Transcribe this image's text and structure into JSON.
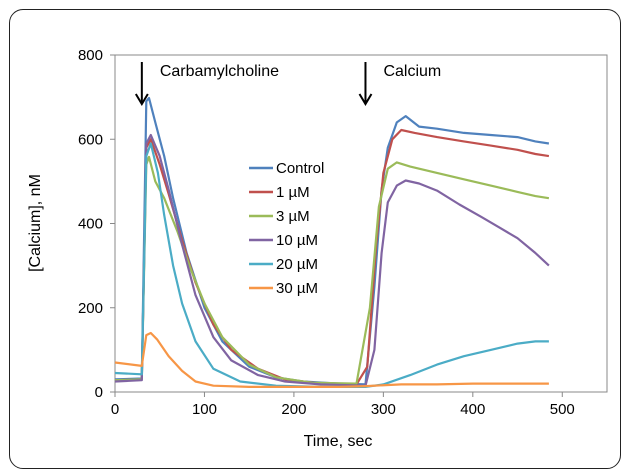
{
  "chart_data": {
    "type": "line",
    "title": "",
    "xlabel": "Time, sec",
    "ylabel": "[Calcium], nM",
    "xlim": [
      0,
      550
    ],
    "ylim": [
      0,
      800
    ],
    "xticks": [
      0,
      100,
      200,
      300,
      400,
      500
    ],
    "yticks": [
      0,
      200,
      400,
      600,
      800
    ],
    "grid": false,
    "legend_position": "center",
    "annotations": [
      {
        "label": "Carbamylcholine",
        "x": 30
      },
      {
        "label": "Calcium",
        "x": 280
      }
    ],
    "series": [
      {
        "name": "Control",
        "color": "#4F81BD",
        "points": [
          [
            0,
            30
          ],
          [
            30,
            32
          ],
          [
            35,
            690
          ],
          [
            38,
            698
          ],
          [
            45,
            640
          ],
          [
            55,
            560
          ],
          [
            65,
            460
          ],
          [
            80,
            330
          ],
          [
            100,
            200
          ],
          [
            120,
            120
          ],
          [
            150,
            60
          ],
          [
            180,
            35
          ],
          [
            210,
            25
          ],
          [
            250,
            20
          ],
          [
            280,
            18
          ],
          [
            290,
            250
          ],
          [
            298,
            480
          ],
          [
            305,
            580
          ],
          [
            315,
            640
          ],
          [
            325,
            655
          ],
          [
            340,
            630
          ],
          [
            360,
            625
          ],
          [
            390,
            615
          ],
          [
            420,
            610
          ],
          [
            450,
            605
          ],
          [
            470,
            595
          ],
          [
            485,
            590
          ]
        ]
      },
      {
        "name": "1 µM",
        "color": "#C0504D",
        "points": [
          [
            0,
            28
          ],
          [
            30,
            30
          ],
          [
            35,
            580
          ],
          [
            40,
            600
          ],
          [
            50,
            540
          ],
          [
            60,
            470
          ],
          [
            75,
            360
          ],
          [
            90,
            260
          ],
          [
            110,
            160
          ],
          [
            130,
            100
          ],
          [
            160,
            55
          ],
          [
            190,
            30
          ],
          [
            230,
            20
          ],
          [
            270,
            18
          ],
          [
            282,
            60
          ],
          [
            292,
            350
          ],
          [
            300,
            520
          ],
          [
            310,
            600
          ],
          [
            320,
            622
          ],
          [
            335,
            615
          ],
          [
            360,
            605
          ],
          [
            390,
            595
          ],
          [
            420,
            585
          ],
          [
            450,
            575
          ],
          [
            470,
            565
          ],
          [
            485,
            560
          ]
        ]
      },
      {
        "name": "3 µM",
        "color": "#9BBB59",
        "points": [
          [
            0,
            28
          ],
          [
            30,
            30
          ],
          [
            35,
            540
          ],
          [
            38,
            558
          ],
          [
            45,
            500
          ],
          [
            55,
            460
          ],
          [
            70,
            380
          ],
          [
            85,
            290
          ],
          [
            100,
            210
          ],
          [
            120,
            130
          ],
          [
            150,
            65
          ],
          [
            180,
            35
          ],
          [
            220,
            22
          ],
          [
            270,
            20
          ],
          [
            285,
            200
          ],
          [
            295,
            440
          ],
          [
            305,
            530
          ],
          [
            315,
            545
          ],
          [
            330,
            535
          ],
          [
            360,
            520
          ],
          [
            390,
            505
          ],
          [
            420,
            490
          ],
          [
            450,
            475
          ],
          [
            470,
            465
          ],
          [
            485,
            460
          ]
        ]
      },
      {
        "name": "10 µM",
        "color": "#8064A2",
        "points": [
          [
            0,
            25
          ],
          [
            30,
            28
          ],
          [
            35,
            590
          ],
          [
            40,
            610
          ],
          [
            50,
            560
          ],
          [
            60,
            480
          ],
          [
            75,
            350
          ],
          [
            90,
            230
          ],
          [
            110,
            130
          ],
          [
            130,
            75
          ],
          [
            160,
            40
          ],
          [
            190,
            25
          ],
          [
            230,
            18
          ],
          [
            280,
            15
          ],
          [
            290,
            100
          ],
          [
            298,
            330
          ],
          [
            305,
            450
          ],
          [
            315,
            490
          ],
          [
            325,
            502
          ],
          [
            340,
            495
          ],
          [
            360,
            478
          ],
          [
            385,
            445
          ],
          [
            410,
            415
          ],
          [
            430,
            390
          ],
          [
            450,
            365
          ],
          [
            470,
            330
          ],
          [
            485,
            300
          ]
        ]
      },
      {
        "name": "20 µM",
        "color": "#4BACC6",
        "points": [
          [
            0,
            45
          ],
          [
            30,
            42
          ],
          [
            35,
            560
          ],
          [
            40,
            590
          ],
          [
            48,
            520
          ],
          [
            55,
            420
          ],
          [
            65,
            300
          ],
          [
            75,
            210
          ],
          [
            90,
            120
          ],
          [
            110,
            55
          ],
          [
            140,
            25
          ],
          [
            180,
            15
          ],
          [
            230,
            12
          ],
          [
            280,
            12
          ],
          [
            300,
            18
          ],
          [
            330,
            40
          ],
          [
            360,
            65
          ],
          [
            390,
            85
          ],
          [
            420,
            100
          ],
          [
            450,
            115
          ],
          [
            470,
            120
          ],
          [
            485,
            120
          ]
        ]
      },
      {
        "name": "30 µM",
        "color": "#F79646",
        "points": [
          [
            0,
            70
          ],
          [
            30,
            62
          ],
          [
            35,
            135
          ],
          [
            40,
            140
          ],
          [
            47,
            125
          ],
          [
            60,
            85
          ],
          [
            75,
            50
          ],
          [
            90,
            25
          ],
          [
            110,
            15
          ],
          [
            150,
            12
          ],
          [
            200,
            12
          ],
          [
            250,
            12
          ],
          [
            280,
            14
          ],
          [
            320,
            18
          ],
          [
            360,
            18
          ],
          [
            400,
            20
          ],
          [
            440,
            20
          ],
          [
            470,
            20
          ],
          [
            485,
            20
          ]
        ]
      }
    ]
  }
}
